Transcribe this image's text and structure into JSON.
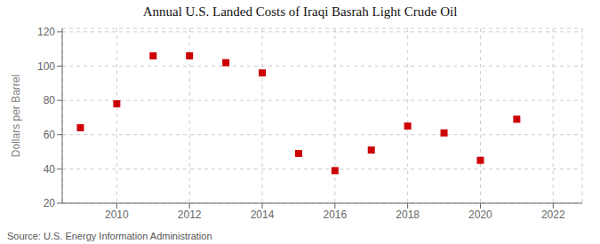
{
  "chart_data": {
    "type": "scatter",
    "title": "Annual U.S. Landed Costs of Iraqi Basrah Light Crude Oil",
    "ylabel": "Dollars per Barrel",
    "annotations": [
      "Source: U.S. Energy Information Administration"
    ],
    "x": [
      2009,
      2010,
      2011,
      2012,
      2013,
      2014,
      2015,
      2016,
      2017,
      2018,
      2019,
      2020,
      2021
    ],
    "values": [
      64,
      78,
      106,
      106,
      102,
      96,
      49,
      39,
      51,
      65,
      61,
      45,
      69
    ],
    "color": "#cc0000",
    "marker": "square",
    "xlim": [
      2008.5,
      2022.8
    ],
    "ylim": [
      20,
      122
    ],
    "xticks": [
      2010,
      2012,
      2014,
      2016,
      2018,
      2020,
      2022
    ],
    "yticks": [
      20,
      40,
      60,
      80,
      100,
      120
    ],
    "grid": true
  }
}
